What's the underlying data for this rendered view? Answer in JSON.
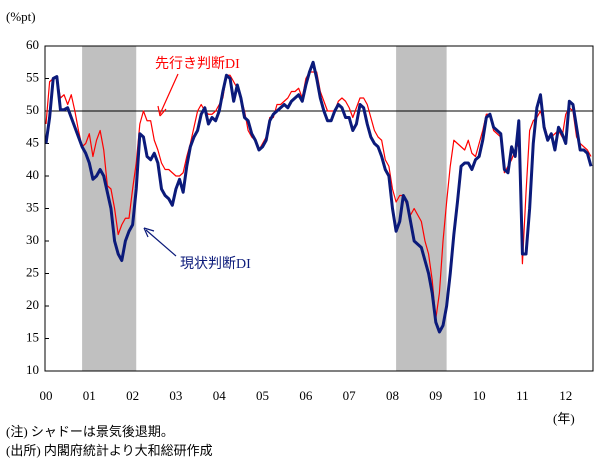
{
  "chart_data": {
    "type": "line",
    "y_axis_label": "(%pt)",
    "x_axis_label": "(年)",
    "notes": [
      "(注) シャドーは景気後退期。",
      "(出所) 内閣府統計より大和総研作成"
    ],
    "categories": [
      "00",
      null,
      null,
      null,
      null,
      null,
      null,
      null,
      null,
      null,
      null,
      null,
      "01",
      null,
      null,
      null,
      null,
      null,
      null,
      null,
      null,
      null,
      null,
      null,
      "02",
      null,
      null,
      null,
      null,
      null,
      null,
      null,
      null,
      null,
      null,
      null,
      "03",
      null,
      null,
      null,
      null,
      null,
      null,
      null,
      null,
      null,
      null,
      null,
      "04",
      null,
      null,
      null,
      null,
      null,
      null,
      null,
      null,
      null,
      null,
      null,
      "05",
      null,
      null,
      null,
      null,
      null,
      null,
      null,
      null,
      null,
      null,
      null,
      "06",
      null,
      null,
      null,
      null,
      null,
      null,
      null,
      null,
      null,
      null,
      null,
      "07",
      null,
      null,
      null,
      null,
      null,
      null,
      null,
      null,
      null,
      null,
      null,
      "08",
      null,
      null,
      null,
      null,
      null,
      null,
      null,
      null,
      null,
      null,
      null,
      "09",
      null,
      null,
      null,
      null,
      null,
      null,
      null,
      null,
      null,
      null,
      null,
      "10",
      null,
      null,
      null,
      null,
      null,
      null,
      null,
      null,
      null,
      null,
      null,
      "11",
      null,
      null,
      null,
      null,
      null,
      null,
      null,
      null,
      null,
      null,
      null,
      "12",
      null,
      null,
      null,
      null,
      null,
      null,
      null
    ],
    "series": [
      {
        "name": "現状判断DI",
        "color": "#0b1a7a",
        "width": 3,
        "values": [
          45,
          49,
          55,
          55.3,
          50.2,
          50.2,
          50.5,
          49,
          47.5,
          46,
          44.5,
          43.5,
          42,
          39.5,
          40,
          41,
          40,
          37.5,
          35,
          30,
          28,
          27,
          30,
          31.5,
          32.5,
          38,
          46.5,
          46,
          43,
          42.5,
          43.5,
          42,
          38,
          37,
          36.5,
          35.5,
          38,
          39.5,
          37.5,
          41.5,
          44.5,
          46,
          47,
          49.5,
          50.5,
          48,
          49,
          48.5,
          50,
          53,
          55.5,
          55,
          51.5,
          54,
          52,
          49,
          48.5,
          46.5,
          45.5,
          44,
          44.5,
          45.5,
          48.5,
          49.5,
          50,
          50.5,
          51,
          50.5,
          51.5,
          52,
          52.5,
          51.5,
          54,
          56,
          57.5,
          55,
          52,
          50,
          48.5,
          48.5,
          50,
          51,
          50.5,
          49,
          49,
          47,
          48,
          51,
          50.5,
          48,
          46,
          45,
          44.5,
          43,
          41,
          40,
          35,
          31.5,
          33,
          37,
          36,
          33,
          30,
          29.5,
          29,
          27,
          25,
          22,
          17.5,
          16,
          17,
          20,
          25,
          31,
          36,
          41.5,
          42,
          42,
          41,
          42.5,
          43,
          45.5,
          49,
          49.5,
          47.5,
          47,
          46.5,
          41,
          40.5,
          44.5,
          43,
          48.5,
          28,
          28,
          35,
          45,
          50.5,
          52.5,
          47.5,
          45.5,
          46.5,
          44,
          47.5,
          46.5,
          45,
          51.5,
          51,
          47.5,
          44,
          44,
          43.5,
          41.5
        ]
      },
      {
        "name": "先行き判断DI",
        "color": "#ff0000",
        "width": 1.2,
        "values": [
          48,
          54.5,
          55,
          55.3,
          52,
          52.5,
          51,
          52.5,
          50,
          47,
          44.5,
          45,
          46.5,
          43,
          45.5,
          47,
          44,
          38.5,
          38,
          35,
          31,
          32.5,
          33.5,
          33.5,
          38,
          42,
          48,
          50,
          48.5,
          48.5,
          45.5,
          44,
          42,
          41,
          41,
          40.5,
          40,
          40,
          40.5,
          43,
          45,
          47.5,
          50,
          51,
          50,
          49.5,
          49.5,
          50,
          51,
          52,
          55.5,
          55.5,
          54.5,
          53.5,
          52,
          50,
          47,
          46,
          45.5,
          44,
          45,
          46,
          49,
          49,
          51,
          51,
          51.5,
          52,
          53,
          53,
          53.5,
          52,
          55,
          56,
          56,
          56,
          53,
          51.5,
          50,
          50,
          50,
          51.5,
          52,
          51.5,
          50.5,
          49,
          50.5,
          52,
          52,
          51,
          49,
          47,
          46,
          45.5,
          42.5,
          41.5,
          38,
          36,
          37,
          37,
          35.5,
          34,
          35,
          34,
          33,
          30,
          28,
          24,
          18,
          22,
          30,
          36,
          41.5,
          45.5,
          45,
          44.5,
          44,
          45.5,
          43.5,
          43,
          45,
          47,
          49.5,
          49.5,
          47,
          46.5,
          46,
          40.5,
          41.5,
          42.5,
          44,
          45,
          26.5,
          37.5,
          47,
          48.5,
          49,
          50,
          48,
          46,
          46,
          46.5,
          47,
          46,
          49.5,
          50.5,
          50,
          46,
          45,
          44.5,
          44,
          43
        ]
      }
    ],
    "shaded_periods": [
      [
        10,
        24
      ],
      [
        97,
        110
      ]
    ],
    "shade_color": "#c0c0c0",
    "reference_line": 50,
    "ylim": [
      10,
      60
    ],
    "yticks": [
      10,
      15,
      20,
      25,
      30,
      35,
      40,
      45,
      50,
      55,
      60
    ]
  }
}
